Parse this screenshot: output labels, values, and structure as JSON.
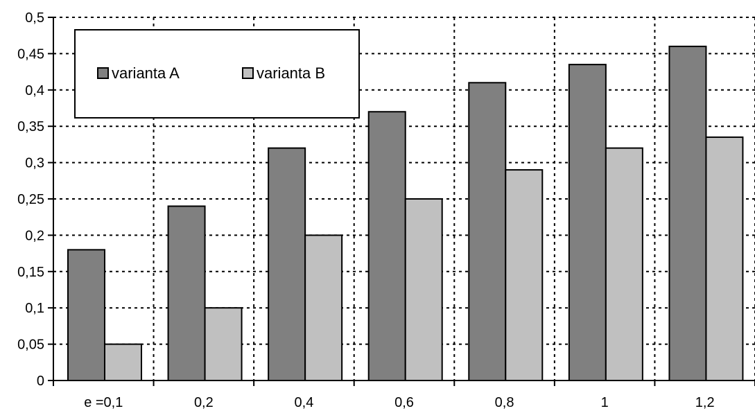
{
  "chart_data": {
    "type": "bar",
    "categories": [
      "e =0,1",
      "0,2",
      "0,4",
      "0,6",
      "0,8",
      "1",
      "1,2"
    ],
    "series": [
      {
        "name": "varianta A",
        "values": [
          0.18,
          0.24,
          0.32,
          0.37,
          0.41,
          0.435,
          0.46
        ],
        "color": "#808080"
      },
      {
        "name": "varianta B",
        "values": [
          0.05,
          0.1,
          0.2,
          0.25,
          0.29,
          0.32,
          0.335
        ],
        "color": "#c0c0c0"
      }
    ],
    "ylim": [
      0,
      0.5
    ],
    "y_ticks": [
      0,
      0.05,
      0.1,
      0.15,
      0.2,
      0.25,
      0.3,
      0.35,
      0.4,
      0.45,
      0.5
    ],
    "y_tick_labels": [
      "0",
      "0,05",
      "0,1",
      "0,15",
      "0,2",
      "0,25",
      "0,3",
      "0,35",
      "0,4",
      "0,45",
      "0,5"
    ],
    "grid": true,
    "grid_style": "dotted",
    "legend_position": "top-left"
  }
}
